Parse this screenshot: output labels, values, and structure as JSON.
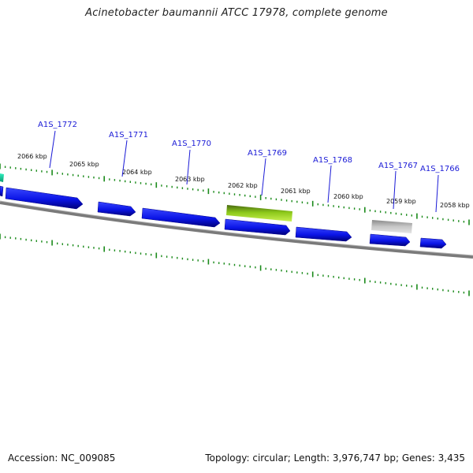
{
  "header": {
    "title": "Acinetobacter baumannii ATCC 17978, complete genome"
  },
  "footer": {
    "accession": "Accession: NC_009085",
    "summary": "Topology: circular; Length: 3,976,747 bp; Genes: 3,435"
  },
  "ruler": {
    "ticks": [
      {
        "label": "2066 kbp"
      },
      {
        "label": "2065 kbp"
      },
      {
        "label": "2064 kbp"
      },
      {
        "label": "2063 kbp"
      },
      {
        "label": "2062 kbp"
      },
      {
        "label": "2061 kbp"
      },
      {
        "label": "2060 kbp"
      },
      {
        "label": "2059 kbp"
      },
      {
        "label": "2058 kbp"
      }
    ]
  },
  "genes": [
    {
      "label": "A1S_1772"
    },
    {
      "label": "A1S_1771"
    },
    {
      "label": "A1S_1770"
    },
    {
      "label": "A1S_1769"
    },
    {
      "label": "A1S_1768"
    },
    {
      "label": "A1S_1767"
    },
    {
      "label": "A1S_1766"
    }
  ],
  "colors": {
    "gene_label": "#1a1ad6",
    "cds": "#0a14e6",
    "cds_edge": "#00008a",
    "tick": "#1a8a1a",
    "backbone": "#808080",
    "highlight_feature": "#9ad81a",
    "gray_feature": "#b8b8b8",
    "teal_feature": "#18d8a0"
  }
}
